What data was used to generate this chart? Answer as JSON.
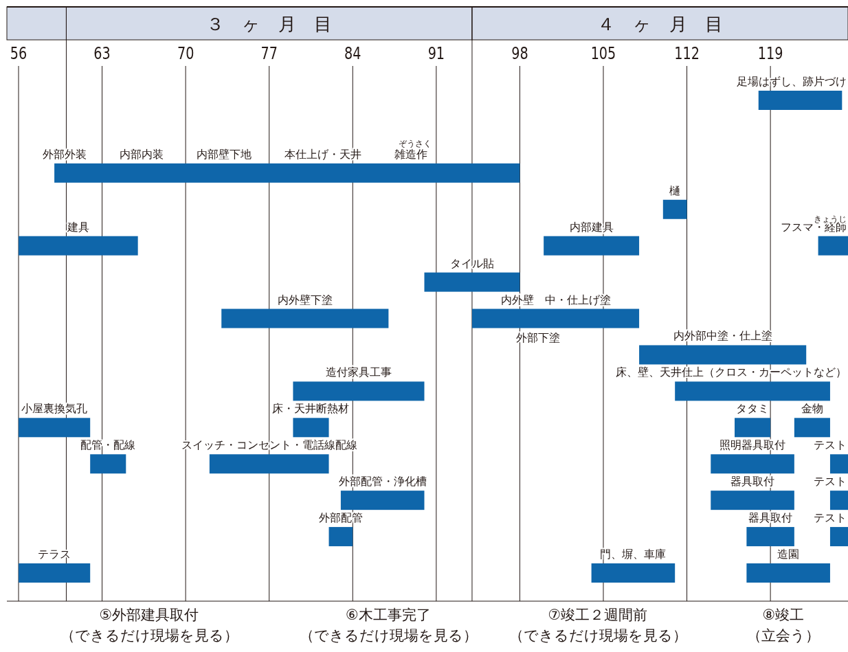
{
  "chart_data": {
    "type": "bar",
    "orientation": "horizontal",
    "legend": false,
    "grid": "x",
    "xlim": [
      56,
      125.5
    ],
    "xticks": [
      56,
      63,
      70,
      77,
      84,
      91,
      98,
      105,
      112,
      119
    ],
    "categories": [
      null,
      null,
      null,
      null,
      null,
      null,
      null,
      null,
      null,
      null,
      null,
      null,
      null,
      null
    ],
    "series": [
      {
        "color": "#0f66aa",
        "base": [
          118,
          null,
          59,
          110,
          56,
          90,
          73,
          108,
          79,
          56,
          62,
          83,
          82,
          56
        ],
        "values": [
          7,
          null,
          39,
          2,
          10,
          8,
          14,
          14,
          11,
          6,
          3,
          7,
          2,
          6
        ],
        "value_labels": [
          "足場はずし、跡片づけ",
          null,
          "外部外装　　　内部内装　　　内部壁下地　　　本仕上げ・天井　　　雑造作",
          "樋",
          "建具",
          "タイル貼",
          "内外壁下塗",
          "内外部中塗・仕上塗",
          "造付家具工事",
          "小屋裏換気孔",
          "配管・配線",
          "外部配管・浄化槽",
          "外部配管",
          "テラス"
        ]
      },
      {
        "color": "#0f66aa",
        "base": [
          null,
          null,
          null,
          null,
          100,
          null,
          94,
          null,
          111,
          79,
          72,
          114,
          117,
          104
        ],
        "values": [
          null,
          null,
          null,
          null,
          8,
          null,
          14,
          null,
          13,
          3,
          10,
          7,
          4,
          7
        ],
        "value_labels": [
          null,
          null,
          null,
          null,
          "内部建具",
          null,
          "内外壁　中・仕上げ塗",
          null,
          "床、壁、天井仕上（クロス・カーペットなど）",
          "床・天井断熱材",
          "スイッチ・コンセント・電話線配線",
          "器具取付",
          "器具取付",
          "門、塀、車庫"
        ]
      },
      {
        "color": "#0f66aa",
        "base": [
          null,
          null,
          null,
          null,
          123,
          null,
          null,
          null,
          null,
          116,
          114,
          124,
          124,
          117
        ],
        "values": [
          null,
          null,
          null,
          null,
          2.5,
          null,
          null,
          null,
          null,
          3,
          7,
          1.5,
          1.5,
          7
        ],
        "value_labels": [
          null,
          null,
          null,
          null,
          "フスマ・経師",
          null,
          null,
          null,
          null,
          "タタミ",
          "照明器具取付",
          "テスト",
          "テスト",
          "造園"
        ]
      },
      {
        "color": "#0f66aa",
        "base": [
          null,
          null,
          null,
          null,
          null,
          null,
          null,
          null,
          null,
          121,
          124,
          null,
          null,
          null
        ],
        "values": [
          null,
          null,
          null,
          null,
          null,
          null,
          null,
          null,
          null,
          3,
          1.5,
          null,
          null,
          null
        ],
        "value_labels": [
          null,
          null,
          null,
          null,
          null,
          null,
          null,
          null,
          null,
          "金物",
          "テスト",
          null,
          null,
          null
        ]
      }
    ],
    "ref_lines": [
      {
        "axis": "x",
        "value": 60
      },
      {
        "axis": "x",
        "value": 94
      }
    ],
    "annotations": [
      "３　ヶ　月　目",
      "４　ヶ　月　目",
      "外部下塗",
      "⑤外部建具取付（できるだけ現場を見る）",
      "⑥木工事完了（できるだけ現場を見る）",
      "⑦竣工２週間前（できるだけ現場を見る）",
      "⑧竣工（立会う）",
      "ぞうさく",
      "きょうじ"
    ]
  }
}
